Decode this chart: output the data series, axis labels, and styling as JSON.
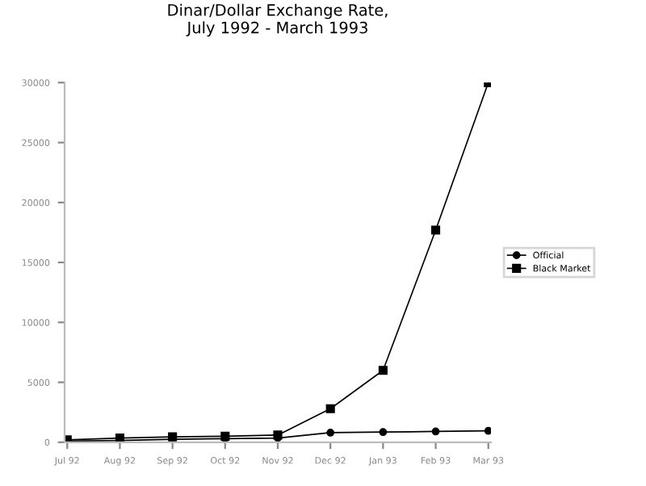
{
  "chart_data": {
    "type": "line",
    "title": "Dinar/Dollar Exchange Rate,\nJuly 1992 - March 1993",
    "categories": [
      "Jul 92",
      "Aug 92",
      "Sep 92",
      "Oct 92",
      "Nov 92",
      "Dec 92",
      "Jan 93",
      "Feb 93",
      "Mar 93"
    ],
    "series": [
      {
        "name": "Official",
        "color": "#000000",
        "marker": "circle",
        "values": [
          100,
          150,
          250,
          300,
          350,
          800,
          850,
          900,
          950
        ]
      },
      {
        "name": "Black Market",
        "color": "#000000",
        "marker": "square",
        "values": [
          200,
          350,
          450,
          500,
          600,
          2800,
          6000,
          17700,
          30000
        ]
      }
    ],
    "ylim": [
      0,
      30000
    ],
    "yticks": [
      0,
      5000,
      10000,
      15000,
      20000,
      25000,
      30000
    ],
    "grid": false,
    "legend": "right",
    "line_style": "solid"
  }
}
